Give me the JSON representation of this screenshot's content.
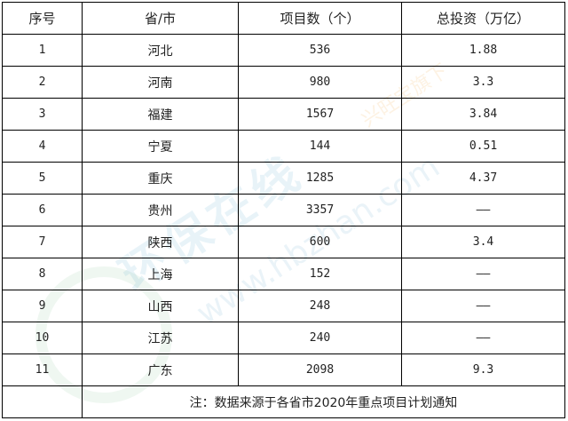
{
  "table": {
    "headers": [
      "序号",
      "省/市",
      "项目数（个）",
      "总投资（万亿）"
    ],
    "rows": [
      [
        "1",
        "河北",
        "536",
        "1.88"
      ],
      [
        "2",
        "河南",
        "980",
        "3.3"
      ],
      [
        "3",
        "福建",
        "1567",
        "3.84"
      ],
      [
        "4",
        "宁夏",
        "144",
        "0.51"
      ],
      [
        "5",
        "重庆",
        "1285",
        "4.37"
      ],
      [
        "6",
        "贵州",
        "3357",
        "——"
      ],
      [
        "7",
        "陕西",
        "600",
        "3.4"
      ],
      [
        "8",
        "上海",
        "152",
        "——"
      ],
      [
        "9",
        "山西",
        "248",
        "——"
      ],
      [
        "10",
        "江苏",
        "240",
        "——"
      ],
      [
        "11",
        "广东",
        "2098",
        "9.3"
      ]
    ],
    "note": "注：数据来源于各省市2020年重点项目计划通知"
  },
  "watermark": {
    "name": "环保在线",
    "url": "www.hbzhan.com",
    "sub": "兴旺宝旗下"
  }
}
